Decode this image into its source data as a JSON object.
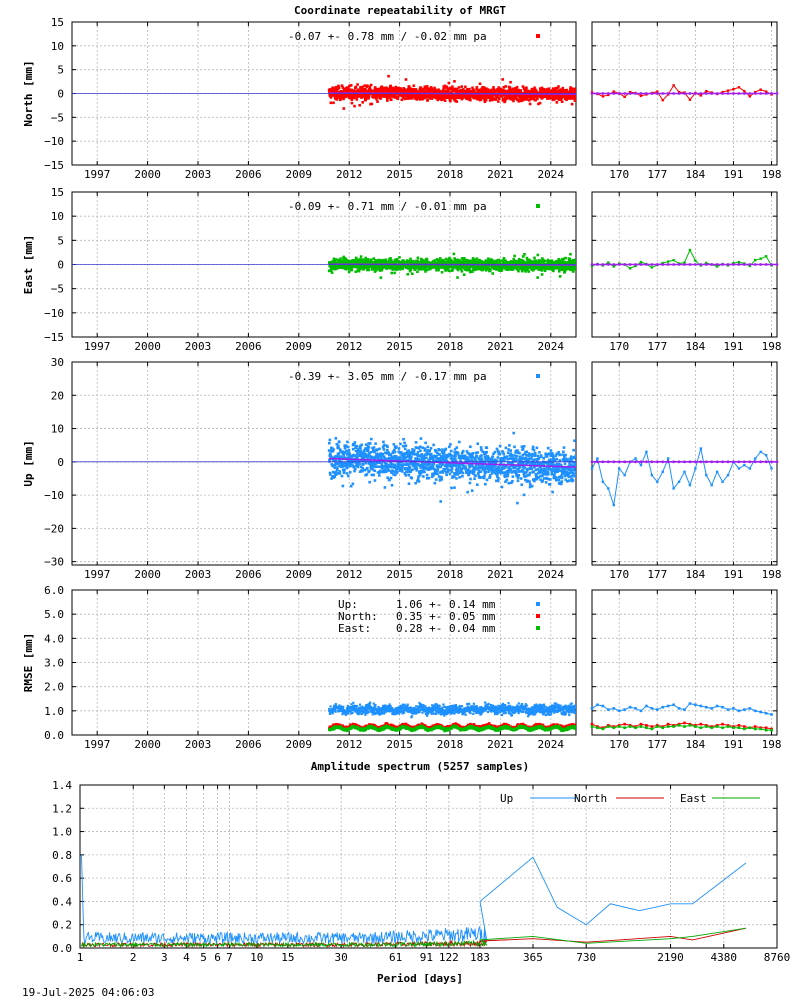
{
  "title": "Coordinate repeatability of MRGT",
  "footer_timestamp": "19-Jul-2025 04:06:03",
  "colors": {
    "north": "#ff0000",
    "east": "#00bb00",
    "up": "#1e90ff",
    "trend": "#a020f0",
    "spec_up": "#1e90ff",
    "spec_north": "#cc0000",
    "spec_east": "#00aa00"
  },
  "chart_data": [
    {
      "id": "north",
      "type": "scatter",
      "ylabel": "North [mm]",
      "ylim": [
        -15,
        15
      ],
      "yticks": [
        "15",
        "10",
        "5",
        "0",
        "−5",
        "−10",
        "−15"
      ],
      "ytick_values": [
        15,
        10,
        5,
        0,
        -5,
        -10,
        -15
      ],
      "xlim": [
        1995.5,
        2025.5
      ],
      "xticks": [
        "1997",
        "2000",
        "2003",
        "2006",
        "2009",
        "2012",
        "2015",
        "2018",
        "2021",
        "2024"
      ],
      "xtick_values": [
        1997,
        2000,
        2003,
        2006,
        2009,
        2012,
        2015,
        2018,
        2021,
        2024
      ],
      "annotation": "-0.07 +- 0.78 mm / -0.02 mm pa",
      "data_start": 2010.8,
      "data_end": 2025.5,
      "scatter_sd": 0.78,
      "trend": [
        0.1,
        -0.15
      ],
      "recent": {
        "xlim": [
          165,
          199
        ],
        "xticks": [
          "170",
          "177",
          "184",
          "191",
          "198"
        ],
        "xtick_values": [
          170,
          177,
          184,
          191,
          198
        ],
        "values": [
          0.2,
          -0.1,
          -0.6,
          -0.3,
          0.4,
          0.0,
          -0.7,
          0.3,
          0.1,
          -0.5,
          -0.2,
          0.1,
          0.4,
          -1.4,
          -0.2,
          1.7,
          0.3,
          0.2,
          -1.3,
          0.1,
          -0.4,
          0.5,
          0.2,
          -0.1,
          0.3,
          0.6,
          0.9,
          1.3,
          0.5,
          -0.6,
          0.3,
          0.8,
          0.4,
          -0.2
        ]
      }
    },
    {
      "id": "east",
      "type": "scatter",
      "ylabel": "East [mm]",
      "ylim": [
        -15,
        15
      ],
      "yticks": [
        "15",
        "10",
        "5",
        "0",
        "−5",
        "−10",
        "−15"
      ],
      "ytick_values": [
        15,
        10,
        5,
        0,
        -5,
        -10,
        -15
      ],
      "xlim": [
        1995.5,
        2025.5
      ],
      "xticks": [
        "1997",
        "2000",
        "2003",
        "2006",
        "2009",
        "2012",
        "2015",
        "2018",
        "2021",
        "2024"
      ],
      "xtick_values": [
        1997,
        2000,
        2003,
        2006,
        2009,
        2012,
        2015,
        2018,
        2021,
        2024
      ],
      "annotation": "-0.09 +- 0.71 mm / -0.01 mm pa",
      "data_start": 2010.8,
      "data_end": 2025.5,
      "scatter_sd": 0.71,
      "trend": [
        0.05,
        -0.1
      ],
      "recent": {
        "xlim": [
          165,
          199
        ],
        "xticks": [
          "170",
          "177",
          "184",
          "191",
          "198"
        ],
        "xtick_values": [
          170,
          177,
          184,
          191,
          198
        ],
        "values": [
          -0.3,
          0.1,
          -0.2,
          0.4,
          -0.4,
          0.2,
          0.0,
          -0.8,
          -0.3,
          0.5,
          0.1,
          -0.6,
          -0.1,
          0.3,
          0.6,
          0.9,
          0.2,
          0.4,
          3.0,
          0.8,
          -0.2,
          0.3,
          0.0,
          -0.4,
          0.1,
          -0.2,
          0.3,
          0.5,
          0.2,
          -0.3,
          0.9,
          1.2,
          1.7,
          -0.2
        ]
      }
    },
    {
      "id": "up",
      "type": "scatter",
      "ylabel": "Up [mm]",
      "ylim": [
        -31,
        30
      ],
      "yticks": [
        "30",
        "20",
        "10",
        "0",
        "−10",
        "−20",
        "−30"
      ],
      "ytick_values": [
        30,
        20,
        10,
        0,
        -10,
        -20,
        -30
      ],
      "xlim": [
        1995.5,
        2025.5
      ],
      "xticks": [
        "1997",
        "2000",
        "2003",
        "2006",
        "2009",
        "2012",
        "2015",
        "2018",
        "2021",
        "2024"
      ],
      "xtick_values": [
        1997,
        2000,
        2003,
        2006,
        2009,
        2012,
        2015,
        2018,
        2021,
        2024
      ],
      "annotation": "-0.39 +- 3.05 mm / -0.17 mm pa",
      "data_start": 2010.8,
      "data_end": 2025.5,
      "scatter_sd": 3.05,
      "trend": [
        1.0,
        -1.6
      ],
      "recent": {
        "xlim": [
          165,
          199
        ],
        "xticks": [
          "170",
          "177",
          "184",
          "191",
          "198"
        ],
        "xtick_values": [
          170,
          177,
          184,
          191,
          198
        ],
        "values": [
          -2,
          1,
          -6,
          -8,
          -13,
          -2,
          -4,
          0,
          1,
          -1,
          3,
          -4,
          -6,
          -3,
          1,
          -8,
          -6,
          -3,
          -7,
          -2,
          4,
          -4,
          -7,
          -3,
          -6,
          -4,
          0,
          -2,
          -1,
          -2,
          1,
          3,
          2,
          -2
        ]
      }
    },
    {
      "id": "rmse",
      "type": "scatter",
      "ylabel": "RMSE [mm]",
      "ylim": [
        0,
        6
      ],
      "yticks": [
        "6.0",
        "5.0",
        "4.0",
        "3.0",
        "2.0",
        "1.0",
        "0.0"
      ],
      "ytick_values": [
        6,
        5,
        4,
        3,
        2,
        1,
        0
      ],
      "xlim": [
        1995.5,
        2025.5
      ],
      "xticks": [
        "1997",
        "2000",
        "2003",
        "2006",
        "2009",
        "2012",
        "2015",
        "2018",
        "2021",
        "2024"
      ],
      "xtick_values": [
        1997,
        2000,
        2003,
        2006,
        2009,
        2012,
        2015,
        2018,
        2021,
        2024
      ],
      "legend": [
        {
          "label": "Up:",
          "value": "1.06 +- 0.14 mm",
          "series": "up"
        },
        {
          "label": "North:",
          "value": "0.35 +- 0.05 mm",
          "series": "north"
        },
        {
          "label": "East:",
          "value": "0.28 +- 0.04 mm",
          "series": "east"
        }
      ],
      "data_start": 2010.8,
      "data_end": 2025.5,
      "series_means": {
        "up": 1.06,
        "north": 0.35,
        "east": 0.28
      },
      "series_sd": {
        "up": 0.14,
        "north": 0.05,
        "east": 0.04
      },
      "recent": {
        "xlim": [
          165,
          199
        ],
        "xticks": [
          "170",
          "177",
          "184",
          "191",
          "198"
        ],
        "xtick_values": [
          170,
          177,
          184,
          191,
          198
        ],
        "up": [
          1.1,
          1.25,
          1.2,
          1.05,
          1.1,
          1.0,
          1.05,
          1.15,
          1.1,
          1.0,
          1.2,
          1.1,
          1.05,
          1.15,
          1.2,
          1.25,
          1.1,
          1.05,
          1.3,
          1.25,
          1.2,
          1.15,
          1.1,
          1.2,
          1.15,
          1.05,
          1.1,
          1.0,
          1.05,
          1.1,
          1.0,
          0.95,
          0.9,
          0.85
        ],
        "north": [
          0.45,
          0.35,
          0.3,
          0.4,
          0.35,
          0.4,
          0.45,
          0.4,
          0.35,
          0.45,
          0.4,
          0.35,
          0.4,
          0.35,
          0.45,
          0.4,
          0.45,
          0.5,
          0.45,
          0.4,
          0.45,
          0.4,
          0.35,
          0.4,
          0.45,
          0.4,
          0.35,
          0.4,
          0.35,
          0.3,
          0.35,
          0.3,
          0.3,
          0.25
        ],
        "east": [
          0.35,
          0.3,
          0.25,
          0.35,
          0.3,
          0.35,
          0.3,
          0.35,
          0.3,
          0.35,
          0.3,
          0.25,
          0.35,
          0.3,
          0.35,
          0.35,
          0.4,
          0.35,
          0.4,
          0.35,
          0.3,
          0.35,
          0.3,
          0.35,
          0.3,
          0.35,
          0.3,
          0.3,
          0.25,
          0.3,
          0.25,
          0.25,
          0.2,
          0.2
        ]
      }
    },
    {
      "id": "spectrum",
      "type": "line",
      "title": "Amplitude spectrum (5257 samples)",
      "xlabel": "Period [days]",
      "xscale": "log",
      "xlim": [
        1,
        8760
      ],
      "ylim": [
        0,
        1.4
      ],
      "xticks": [
        "1",
        "2",
        "3",
        "4",
        "5",
        "6",
        "7",
        "10",
        "15",
        "30",
        "61",
        "91",
        "122",
        "183",
        "365",
        "730",
        "2190",
        "4380",
        "8760"
      ],
      "xtick_values": [
        1,
        2,
        3,
        4,
        5,
        6,
        7,
        10,
        15,
        30,
        61,
        91,
        122,
        183,
        365,
        730,
        2190,
        4380,
        8760
      ],
      "yticks": [
        "1.4",
        "1.2",
        "1.0",
        "0.8",
        "0.6",
        "0.4",
        "0.2",
        "0.0"
      ],
      "ytick_values": [
        1.4,
        1.2,
        1.0,
        0.8,
        0.6,
        0.4,
        0.2,
        0.0
      ],
      "legend_position": "top-right",
      "series": [
        {
          "name": "Up",
          "key": "spec_up",
          "peaks": [
            [
              1,
              0.8
            ],
            [
              183,
              0.4
            ],
            [
              365,
              0.78
            ],
            [
              500,
              0.35
            ],
            [
              730,
              0.2
            ],
            [
              1000,
              0.38
            ],
            [
              1460,
              0.32
            ],
            [
              2190,
              0.38
            ],
            [
              2920,
              0.38
            ],
            [
              5840,
              0.73
            ]
          ]
        },
        {
          "name": "North",
          "key": "spec_north",
          "peaks": [
            [
              1,
              0.05
            ],
            [
              183,
              0.06
            ],
            [
              365,
              0.08
            ],
            [
              730,
              0.05
            ],
            [
              2190,
              0.1
            ],
            [
              2920,
              0.07
            ],
            [
              5840,
              0.17
            ]
          ]
        },
        {
          "name": "East",
          "key": "spec_east",
          "peaks": [
            [
              1,
              0.06
            ],
            [
              183,
              0.07
            ],
            [
              365,
              0.1
            ],
            [
              730,
              0.04
            ],
            [
              2190,
              0.08
            ],
            [
              2920,
              0.1
            ],
            [
              5840,
              0.17
            ]
          ]
        }
      ]
    }
  ]
}
